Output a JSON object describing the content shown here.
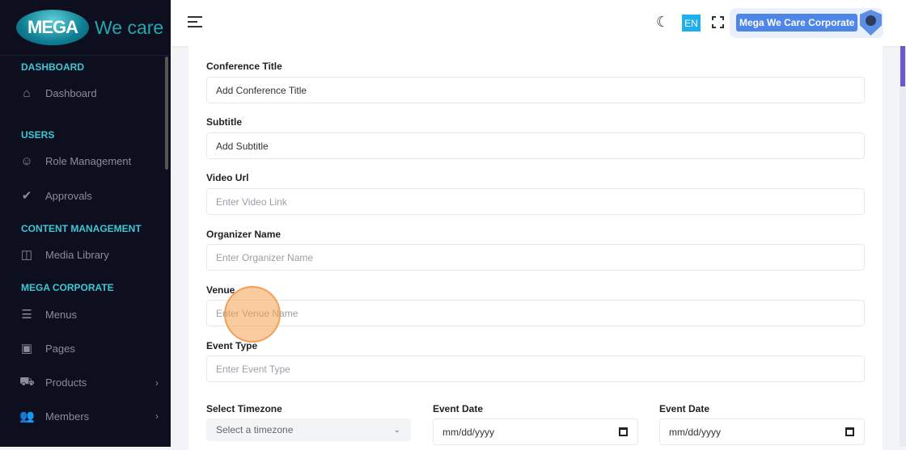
{
  "logo": {
    "mark": "MEGA",
    "text": "We care"
  },
  "sidebar": {
    "sections": [
      {
        "label": "DASHBOARD"
      },
      {
        "label": "USERS"
      },
      {
        "label": "CONTENT MANAGEMENT"
      },
      {
        "label": "MEGA CORPORATE"
      }
    ],
    "items": [
      {
        "label": "Dashboard",
        "icon": "home-icon"
      },
      {
        "label": "Role Management",
        "icon": "user-icon"
      },
      {
        "label": "Approvals",
        "icon": "check-icon"
      },
      {
        "label": "Media Library",
        "icon": "camera-icon"
      },
      {
        "label": "Menus",
        "icon": "menu-icon"
      },
      {
        "label": "Pages",
        "icon": "layout-icon"
      },
      {
        "label": "Products",
        "icon": "cart-icon",
        "has_children": true
      },
      {
        "label": "Members",
        "icon": "users-icon",
        "has_children": true
      }
    ]
  },
  "header": {
    "lang": "EN",
    "org": "Mega We Care Corporate"
  },
  "form": {
    "conference_title": {
      "label": "Conference Title",
      "value": "Add Conference Title"
    },
    "subtitle": {
      "label": "Subtitle",
      "value": "Add Subtitle"
    },
    "video_url": {
      "label": "Video Url",
      "placeholder": "Enter Video Link"
    },
    "organizer": {
      "label": "Organizer Name",
      "placeholder": "Enter Organizer Name"
    },
    "venue": {
      "label": "Venue",
      "placeholder": "Enter Venue Name"
    },
    "event_type": {
      "label": "Event Type",
      "placeholder": "Enter Event Type"
    },
    "timezone": {
      "label": "Select Timezone",
      "value": "Select a timezone"
    },
    "event_date_1": {
      "label": "Event Date",
      "placeholder": "mm/dd/yyyy"
    },
    "event_date_2": {
      "label": "Event Date",
      "placeholder": "mm/dd/yyyy"
    }
  },
  "colors": {
    "sidebar_bg": "#0d0f1e",
    "section": "#3fc7d6",
    "accent": "#4d86e6",
    "lang": "#1eb0ea"
  }
}
